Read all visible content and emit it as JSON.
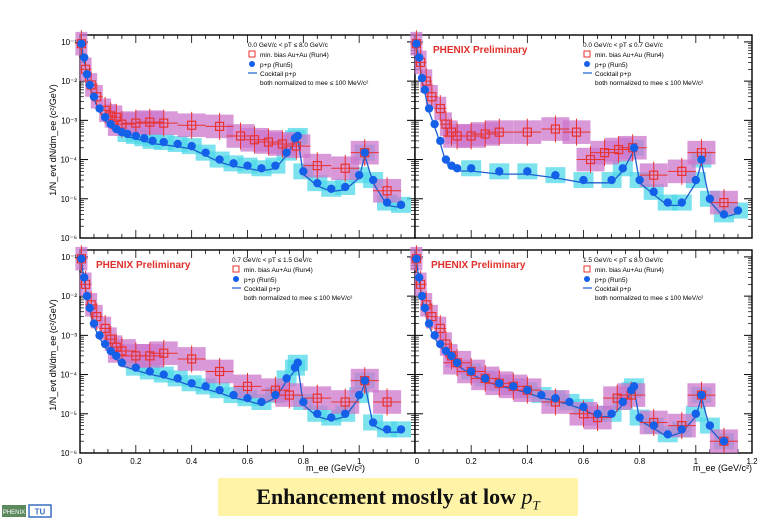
{
  "caption": {
    "text": "Enhancement mostly at low ",
    "pt": "p",
    "pt_sub": "T"
  },
  "logos": {
    "phenix": "PHENIX",
    "tu": "TU"
  },
  "colors": {
    "auau": "#e8322e",
    "auau_sys": "#cc77cc",
    "pp": "#1560e8",
    "pp_sys": "#4fd8e8",
    "cocktail": "#1c5fd0",
    "prelim": "#e0302c"
  },
  "axes": {
    "ylabel": "1/N_evt dN/dm_ee (c²/GeV)",
    "xlabel_1": "m_ee (GeV/c²)",
    "xlabel_2": "m_ee (GeV/c²)",
    "ylim": [
      1e-06,
      0.15
    ],
    "xlim": [
      0,
      1.2
    ],
    "yticks": [
      "10⁻¹",
      "10⁻²",
      "10⁻³",
      "10⁻⁴",
      "10⁻⁵",
      "10⁻⁶"
    ],
    "xticks_left": [
      "0",
      "0.2",
      "0.4",
      "0.6",
      "0.8",
      "1"
    ],
    "xticks_right": [
      "0.2",
      "0.4",
      "0.6",
      "0.8",
      "1",
      "1.2"
    ],
    "xtick_corner": "0"
  },
  "chart_data": [
    {
      "type": "scatter",
      "panel": "top-left",
      "prelim": "",
      "pt_range": "0.0 GeV/c < pT ≤ 8.0 GeV/c",
      "legend": [
        "min. bias Au+Au (Run4)",
        "p+p (Run5)",
        "Cocktail p+p",
        "both normalized to mee ≤ 100 MeV/c²"
      ],
      "series": [
        {
          "name": "min. bias Au+Au (Run4)",
          "x": [
            0.005,
            0.02,
            0.04,
            0.06,
            0.09,
            0.11,
            0.13,
            0.15,
            0.2,
            0.25,
            0.3,
            0.4,
            0.5,
            0.575,
            0.625,
            0.675,
            0.725,
            0.775,
            0.85,
            0.95,
            1.02,
            1.1
          ],
          "y": [
            0.09,
            0.02,
            0.008,
            0.004,
            0.0018,
            0.0013,
            0.0012,
            0.0008,
            0.00085,
            0.0009,
            0.00085,
            0.00075,
            0.0007,
            0.0004,
            0.00032,
            0.00028,
            0.00025,
            0.00022,
            7e-05,
            6e-05,
            0.00015,
            1.6e-05
          ]
        },
        {
          "name": "p+p (Run5)",
          "x": [
            0.005,
            0.015,
            0.025,
            0.035,
            0.05,
            0.07,
            0.09,
            0.11,
            0.13,
            0.15,
            0.17,
            0.2,
            0.23,
            0.26,
            0.3,
            0.35,
            0.4,
            0.45,
            0.5,
            0.55,
            0.6,
            0.65,
            0.7,
            0.74,
            0.77,
            0.78,
            0.8,
            0.85,
            0.9,
            0.95,
            1.0,
            1.02,
            1.05,
            1.1,
            1.15
          ],
          "y": [
            0.09,
            0.04,
            0.015,
            0.008,
            0.004,
            0.002,
            0.0012,
            0.0008,
            0.0006,
            0.0005,
            0.00045,
            0.0004,
            0.00035,
            0.0003,
            0.00028,
            0.00025,
            0.00022,
            0.00015,
            0.0001,
            8e-05,
            7e-05,
            6e-05,
            7e-05,
            0.00015,
            0.00035,
            0.0004,
            5e-05,
            2.5e-05,
            1.8e-05,
            2e-05,
            4e-05,
            0.00015,
            3e-05,
            8e-06,
            7e-06
          ]
        }
      ]
    },
    {
      "type": "scatter",
      "panel": "top-right",
      "prelim": "PHENIX Preliminary",
      "pt_range": "0.0 GeV/c < pT ≤ 0.7 GeV/c",
      "legend": [
        "min. bias Au+Au (Run4)",
        "p+p (Run5)",
        "Cocktail p+p",
        "both normalized to mee ≤ 100 MeV/c²"
      ],
      "series": [
        {
          "name": "min. bias Au+Au (Run4)",
          "x": [
            0.005,
            0.02,
            0.04,
            0.06,
            0.09,
            0.11,
            0.13,
            0.15,
            0.2,
            0.25,
            0.3,
            0.4,
            0.5,
            0.575,
            0.625,
            0.675,
            0.725,
            0.775,
            0.85,
            0.95,
            1.02,
            1.1
          ],
          "y": [
            0.09,
            0.03,
            0.01,
            0.004,
            0.002,
            0.0008,
            0.0005,
            0.0004,
            0.0004,
            0.00045,
            0.0005,
            0.0005,
            0.0006,
            0.0005,
            0.0001,
            0.00015,
            0.00018,
            0.0002,
            4e-05,
            5e-05,
            0.00015,
            8e-06
          ]
        },
        {
          "name": "p+p (Run5)",
          "x": [
            0.005,
            0.015,
            0.025,
            0.035,
            0.05,
            0.07,
            0.09,
            0.11,
            0.13,
            0.15,
            0.2,
            0.3,
            0.4,
            0.5,
            0.6,
            0.7,
            0.74,
            0.78,
            0.8,
            0.85,
            0.9,
            0.95,
            1.0,
            1.02,
            1.05,
            1.1,
            1.15
          ],
          "y": [
            0.09,
            0.04,
            0.012,
            0.006,
            0.002,
            0.0008,
            0.0003,
            0.0001,
            7e-05,
            6e-05,
            6e-05,
            5e-05,
            5e-05,
            4e-05,
            3e-05,
            3e-05,
            6e-05,
            0.0002,
            3e-05,
            1.5e-05,
            8e-06,
            8e-06,
            3e-05,
            0.0001,
            1e-05,
            4e-06,
            5e-06
          ]
        }
      ]
    },
    {
      "type": "scatter",
      "panel": "bottom-left",
      "prelim": "PHENIX Preliminary",
      "pt_range": "0.7 GeV/c < pT ≤ 1.5 GeV/c",
      "legend": [
        "min. bias Au+Au (Run4)",
        "p+p (Run5)",
        "Cocktail p+p",
        "both normalized to mee ≤ 100 MeV/c²"
      ],
      "series": [
        {
          "name": "min. bias Au+Au (Run4)",
          "x": [
            0.005,
            0.02,
            0.04,
            0.06,
            0.09,
            0.11,
            0.13,
            0.15,
            0.2,
            0.25,
            0.3,
            0.4,
            0.5,
            0.6,
            0.7,
            0.75,
            0.85,
            0.95,
            1.02,
            1.1
          ],
          "y": [
            0.09,
            0.02,
            0.006,
            0.003,
            0.0015,
            0.0008,
            0.0005,
            0.0004,
            0.0003,
            0.0003,
            0.00035,
            0.00025,
            0.00012,
            5e-05,
            4e-05,
            3e-05,
            2.5e-05,
            2e-05,
            7e-05,
            2e-05
          ]
        },
        {
          "name": "p+p (Run5)",
          "x": [
            0.005,
            0.015,
            0.025,
            0.035,
            0.05,
            0.07,
            0.09,
            0.11,
            0.13,
            0.15,
            0.2,
            0.25,
            0.3,
            0.35,
            0.4,
            0.45,
            0.5,
            0.55,
            0.6,
            0.65,
            0.7,
            0.74,
            0.77,
            0.78,
            0.8,
            0.85,
            0.9,
            0.95,
            1.0,
            1.02,
            1.05,
            1.1,
            1.15
          ],
          "y": [
            0.09,
            0.03,
            0.01,
            0.005,
            0.002,
            0.001,
            0.0006,
            0.0004,
            0.0003,
            0.0002,
            0.00015,
            0.00012,
            0.0001,
            8e-05,
            6e-05,
            5e-05,
            4e-05,
            3e-05,
            2.5e-05,
            2e-05,
            3e-05,
            8e-05,
            0.00015,
            0.0002,
            2e-05,
            1e-05,
            8e-06,
            1e-05,
            3e-05,
            7e-05,
            6e-06,
            4e-06,
            4e-06
          ]
        }
      ]
    },
    {
      "type": "scatter",
      "panel": "bottom-right",
      "prelim": "PHENIX Preliminary",
      "pt_range": "1.5 GeV/c < pT ≤ 8.0 GeV/c",
      "legend": [
        "min. bias Au+Au (Run4)",
        "p+p (Run5)",
        "Cocktail p+p",
        "both normalized to mee ≤ 100 MeV/c²"
      ],
      "series": [
        {
          "name": "min. bias Au+Au (Run4)",
          "x": [
            0.005,
            0.02,
            0.04,
            0.06,
            0.09,
            0.11,
            0.13,
            0.15,
            0.2,
            0.25,
            0.3,
            0.35,
            0.4,
            0.5,
            0.6,
            0.65,
            0.72,
            0.77,
            0.85,
            0.95,
            1.02,
            1.1
          ],
          "y": [
            0.09,
            0.02,
            0.006,
            0.003,
            0.0015,
            0.0006,
            0.0003,
            0.0002,
            0.00012,
            8e-05,
            6e-05,
            5e-05,
            4e-05,
            2e-05,
            1e-05,
            8e-06,
            2.5e-05,
            3e-05,
            6e-06,
            5e-06,
            3e-05,
            2e-06
          ]
        },
        {
          "name": "p+p (Run5)",
          "x": [
            0.005,
            0.015,
            0.025,
            0.035,
            0.05,
            0.07,
            0.09,
            0.11,
            0.13,
            0.15,
            0.2,
            0.25,
            0.3,
            0.35,
            0.4,
            0.45,
            0.5,
            0.55,
            0.6,
            0.65,
            0.7,
            0.74,
            0.77,
            0.78,
            0.8,
            0.85,
            0.9,
            0.95,
            1.0,
            1.02,
            1.05,
            1.1
          ],
          "y": [
            0.09,
            0.03,
            0.01,
            0.005,
            0.002,
            0.001,
            0.0006,
            0.0004,
            0.0003,
            0.0002,
            0.00012,
            8e-05,
            6e-05,
            5e-05,
            4e-05,
            3e-05,
            2.5e-05,
            2e-05,
            1.5e-05,
            1e-05,
            1e-05,
            2e-05,
            4e-05,
            5e-05,
            8e-06,
            5e-06,
            3e-06,
            4e-06,
            1e-05,
            3e-05,
            5e-06,
            2e-06
          ]
        }
      ]
    }
  ]
}
